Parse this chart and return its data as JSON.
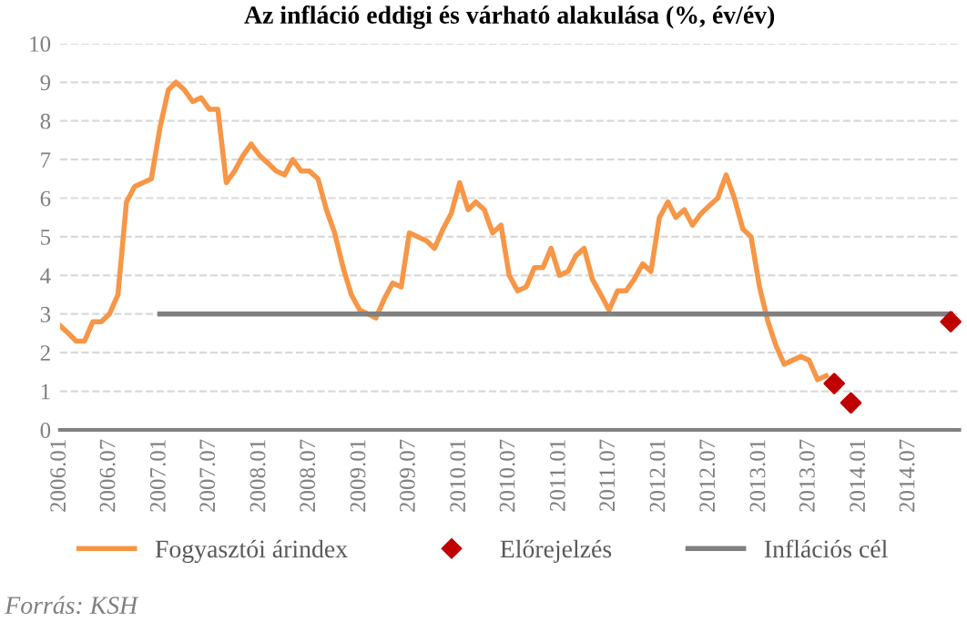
{
  "chart_data": {
    "type": "line",
    "title": "Az infláció eddigi és várható alakulása (%, év/év)",
    "xlim": [
      "2006-01",
      "2015-01"
    ],
    "xticks": [
      {
        "value": "2006-01",
        "label": "2006.01"
      },
      {
        "value": "2006-07",
        "label": "2006.07"
      },
      {
        "value": "2007-01",
        "label": "2007.01"
      },
      {
        "value": "2007-07",
        "label": "2007.07"
      },
      {
        "value": "2008-01",
        "label": "2008.01"
      },
      {
        "value": "2008-07",
        "label": "2008.07"
      },
      {
        "value": "2009-01",
        "label": "2009.01"
      },
      {
        "value": "2009-07",
        "label": "2009.07"
      },
      {
        "value": "2010-01",
        "label": "2010.01"
      },
      {
        "value": "2010-07",
        "label": "2010.07"
      },
      {
        "value": "2011-01",
        "label": "2011.01"
      },
      {
        "value": "2011-07",
        "label": "2011.07"
      },
      {
        "value": "2012-01",
        "label": "2012.01"
      },
      {
        "value": "2012-07",
        "label": "2012.07"
      },
      {
        "value": "2013-01",
        "label": "2013.01"
      },
      {
        "value": "2013-07",
        "label": "2013.07"
      },
      {
        "value": "2014-01",
        "label": "2014.01"
      },
      {
        "value": "2014-07",
        "label": "2014.07"
      }
    ],
    "ylim": [
      0,
      10
    ],
    "yticks": [
      0,
      1,
      2,
      3,
      4,
      5,
      6,
      7,
      8,
      9,
      10
    ],
    "grid": "y",
    "legend": "bottom",
    "series": [
      {
        "name": "Fogyasztói árindex",
        "color": "#f79646",
        "x": [
          "2006-01",
          "2006-02",
          "2006-03",
          "2006-04",
          "2006-05",
          "2006-06",
          "2006-07",
          "2006-08",
          "2006-09",
          "2006-10",
          "2006-11",
          "2006-12",
          "2007-01",
          "2007-02",
          "2007-03",
          "2007-04",
          "2007-05",
          "2007-06",
          "2007-07",
          "2007-08",
          "2007-09",
          "2007-10",
          "2007-11",
          "2007-12",
          "2008-01",
          "2008-02",
          "2008-03",
          "2008-04",
          "2008-05",
          "2008-06",
          "2008-07",
          "2008-08",
          "2008-09",
          "2008-10",
          "2008-11",
          "2008-12",
          "2009-01",
          "2009-02",
          "2009-03",
          "2009-04",
          "2009-05",
          "2009-06",
          "2009-07",
          "2009-08",
          "2009-09",
          "2009-10",
          "2009-11",
          "2009-12",
          "2010-01",
          "2010-02",
          "2010-03",
          "2010-04",
          "2010-05",
          "2010-06",
          "2010-07",
          "2010-08",
          "2010-09",
          "2010-10",
          "2010-11",
          "2010-12",
          "2011-01",
          "2011-02",
          "2011-03",
          "2011-04",
          "2011-05",
          "2011-06",
          "2011-07",
          "2011-08",
          "2011-09",
          "2011-10",
          "2011-11",
          "2011-12",
          "2012-01",
          "2012-02",
          "2012-03",
          "2012-04",
          "2012-05",
          "2012-06",
          "2012-07",
          "2012-08",
          "2012-09",
          "2012-10",
          "2012-11",
          "2012-12",
          "2013-01",
          "2013-02",
          "2013-03",
          "2013-04",
          "2013-05",
          "2013-06",
          "2013-07",
          "2013-08",
          "2013-09"
        ],
        "values": [
          2.7,
          2.5,
          2.3,
          2.3,
          2.8,
          2.8,
          3.0,
          3.5,
          5.9,
          6.3,
          6.4,
          6.5,
          7.8,
          8.8,
          9.0,
          8.8,
          8.5,
          8.6,
          8.3,
          8.3,
          6.4,
          6.7,
          7.1,
          7.4,
          7.1,
          6.9,
          6.7,
          6.6,
          7.0,
          6.7,
          6.7,
          6.5,
          5.7,
          5.1,
          4.2,
          3.5,
          3.1,
          3.0,
          2.9,
          3.4,
          3.8,
          3.7,
          5.1,
          5.0,
          4.9,
          4.7,
          5.2,
          5.6,
          6.4,
          5.7,
          5.9,
          5.7,
          5.1,
          5.3,
          4.0,
          3.6,
          3.7,
          4.2,
          4.2,
          4.7,
          4.0,
          4.1,
          4.5,
          4.7,
          3.9,
          3.5,
          3.1,
          3.6,
          3.6,
          3.9,
          4.3,
          4.1,
          5.5,
          5.9,
          5.5,
          5.7,
          5.3,
          5.6,
          5.8,
          6.0,
          6.6,
          6.0,
          5.2,
          5.0,
          3.7,
          2.8,
          2.2,
          1.7,
          1.8,
          1.9,
          1.8,
          1.3,
          1.4
        ]
      },
      {
        "name": "Előrejelzés",
        "type": "scatter",
        "marker": "diamond",
        "color": "#c00000",
        "x": [
          "2013-10",
          "2013-12",
          "2014-12"
        ],
        "values": [
          1.2,
          0.7,
          2.8
        ]
      },
      {
        "name": "Inflációs cél",
        "color": "#808080",
        "x": [
          "2007-01",
          "2014-12"
        ],
        "values": [
          3,
          3
        ]
      }
    ],
    "annotations": [
      "Forrás: KSH"
    ]
  }
}
